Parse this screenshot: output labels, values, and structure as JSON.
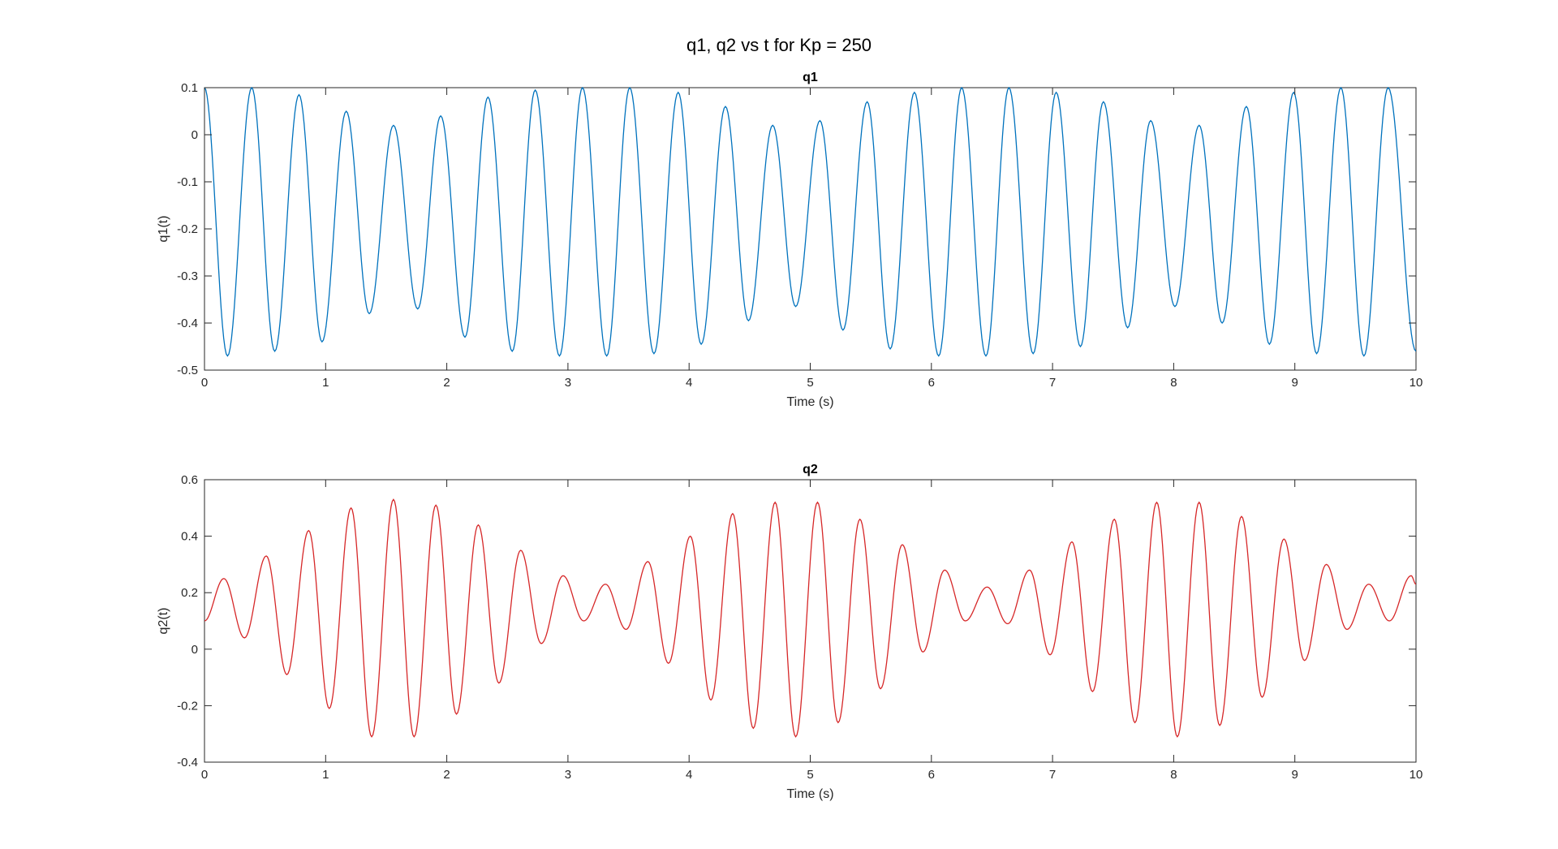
{
  "figure": {
    "title": "q1, q2 vs t for Kp = 250"
  },
  "chart_data": [
    {
      "type": "line",
      "title": "q1",
      "xlabel": "Time (s)",
      "ylabel": "q1(t)",
      "xlim": [
        0,
        10
      ],
      "ylim": [
        -0.5,
        0.1
      ],
      "xticks": [
        0,
        1,
        2,
        3,
        4,
        5,
        6,
        7,
        8,
        9,
        10
      ],
      "xtick_labels": [
        "0",
        "1",
        "2",
        "3",
        "4",
        "5",
        "6",
        "7",
        "8",
        "9",
        "10"
      ],
      "yticks": [
        -0.5,
        -0.4,
        -0.3,
        -0.2,
        -0.1,
        0,
        0.1
      ],
      "ytick_labels": [
        "-0.5",
        "-0.4",
        "-0.3",
        "-0.2",
        "-0.1",
        "0",
        "0.1"
      ],
      "grid": false,
      "series": [
        {
          "color": "#0072BD",
          "x": [
            0,
            0.19,
            0.39,
            0.58,
            0.78,
            0.97,
            1.17,
            1.36,
            1.56,
            1.76,
            1.95,
            2.15,
            2.34,
            2.54,
            2.73,
            2.93,
            3.12,
            3.32,
            3.51,
            3.71,
            3.91,
            4.1,
            4.3,
            4.49,
            4.69,
            4.88,
            5.08,
            5.27,
            5.47,
            5.66,
            5.86,
            6.06,
            6.25,
            6.45,
            6.64,
            6.84,
            7.03,
            7.23,
            7.42,
            7.62,
            7.81,
            8.01,
            8.21,
            8.4,
            8.6,
            8.79,
            8.99,
            9.18,
            9.38,
            9.57,
            9.77,
            10
          ],
          "y": [
            0.1,
            -0.47,
            0.1,
            -0.46,
            0.085,
            -0.44,
            0.05,
            -0.38,
            0.02,
            -0.37,
            0.04,
            -0.43,
            0.08,
            -0.46,
            0.095,
            -0.47,
            0.1,
            -0.47,
            0.1,
            -0.465,
            0.09,
            -0.445,
            0.06,
            -0.395,
            0.02,
            -0.365,
            0.03,
            -0.415,
            0.07,
            -0.455,
            0.09,
            -0.47,
            0.1,
            -0.47,
            0.1,
            -0.465,
            0.09,
            -0.45,
            0.07,
            -0.41,
            0.03,
            -0.365,
            0.02,
            -0.4,
            0.06,
            -0.445,
            0.09,
            -0.465,
            0.1,
            -0.47,
            0.1,
            -0.46
          ]
        }
      ]
    },
    {
      "type": "line",
      "title": "q2",
      "xlabel": "Time (s)",
      "ylabel": "q2(t)",
      "xlim": [
        0,
        10
      ],
      "ylim": [
        -0.4,
        0.6
      ],
      "xticks": [
        0,
        1,
        2,
        3,
        4,
        5,
        6,
        7,
        8,
        9,
        10
      ],
      "xtick_labels": [
        "0",
        "1",
        "2",
        "3",
        "4",
        "5",
        "6",
        "7",
        "8",
        "9",
        "10"
      ],
      "yticks": [
        -0.4,
        -0.2,
        0,
        0.2,
        0.4,
        0.6
      ],
      "ytick_labels": [
        "-0.4",
        "-0.2",
        "0",
        "0.2",
        "0.4",
        "0.6"
      ],
      "grid": false,
      "series": [
        {
          "color": "#D62728",
          "x": [
            0,
            0.16,
            0.33,
            0.51,
            0.68,
            0.86,
            1.03,
            1.21,
            1.38,
            1.56,
            1.73,
            1.91,
            2.08,
            2.26,
            2.43,
            2.61,
            2.78,
            2.96,
            3.13,
            3.31,
            3.48,
            3.66,
            3.83,
            4.01,
            4.18,
            4.36,
            4.53,
            4.71,
            4.88,
            5.06,
            5.23,
            5.41,
            5.58,
            5.76,
            5.93,
            6.11,
            6.28,
            6.46,
            6.63,
            6.81,
            6.98,
            7.16,
            7.33,
            7.51,
            7.68,
            7.86,
            8.03,
            8.21,
            8.38,
            8.56,
            8.73,
            8.91,
            9.08,
            9.26,
            9.43,
            9.61,
            9.78,
            9.96,
            10
          ],
          "y": [
            0.1,
            0.25,
            0.04,
            0.33,
            -0.09,
            0.42,
            -0.21,
            0.5,
            -0.31,
            0.53,
            -0.31,
            0.51,
            -0.23,
            0.44,
            -0.12,
            0.35,
            0.02,
            0.26,
            0.1,
            0.23,
            0.07,
            0.31,
            -0.05,
            0.4,
            -0.18,
            0.48,
            -0.28,
            0.52,
            -0.31,
            0.52,
            -0.26,
            0.46,
            -0.14,
            0.37,
            -0.01,
            0.28,
            0.1,
            0.22,
            0.09,
            0.28,
            -0.02,
            0.38,
            -0.15,
            0.46,
            -0.26,
            0.52,
            -0.31,
            0.52,
            -0.27,
            0.47,
            -0.17,
            0.39,
            -0.04,
            0.3,
            0.07,
            0.23,
            0.1,
            0.26,
            0.23
          ]
        }
      ]
    }
  ]
}
